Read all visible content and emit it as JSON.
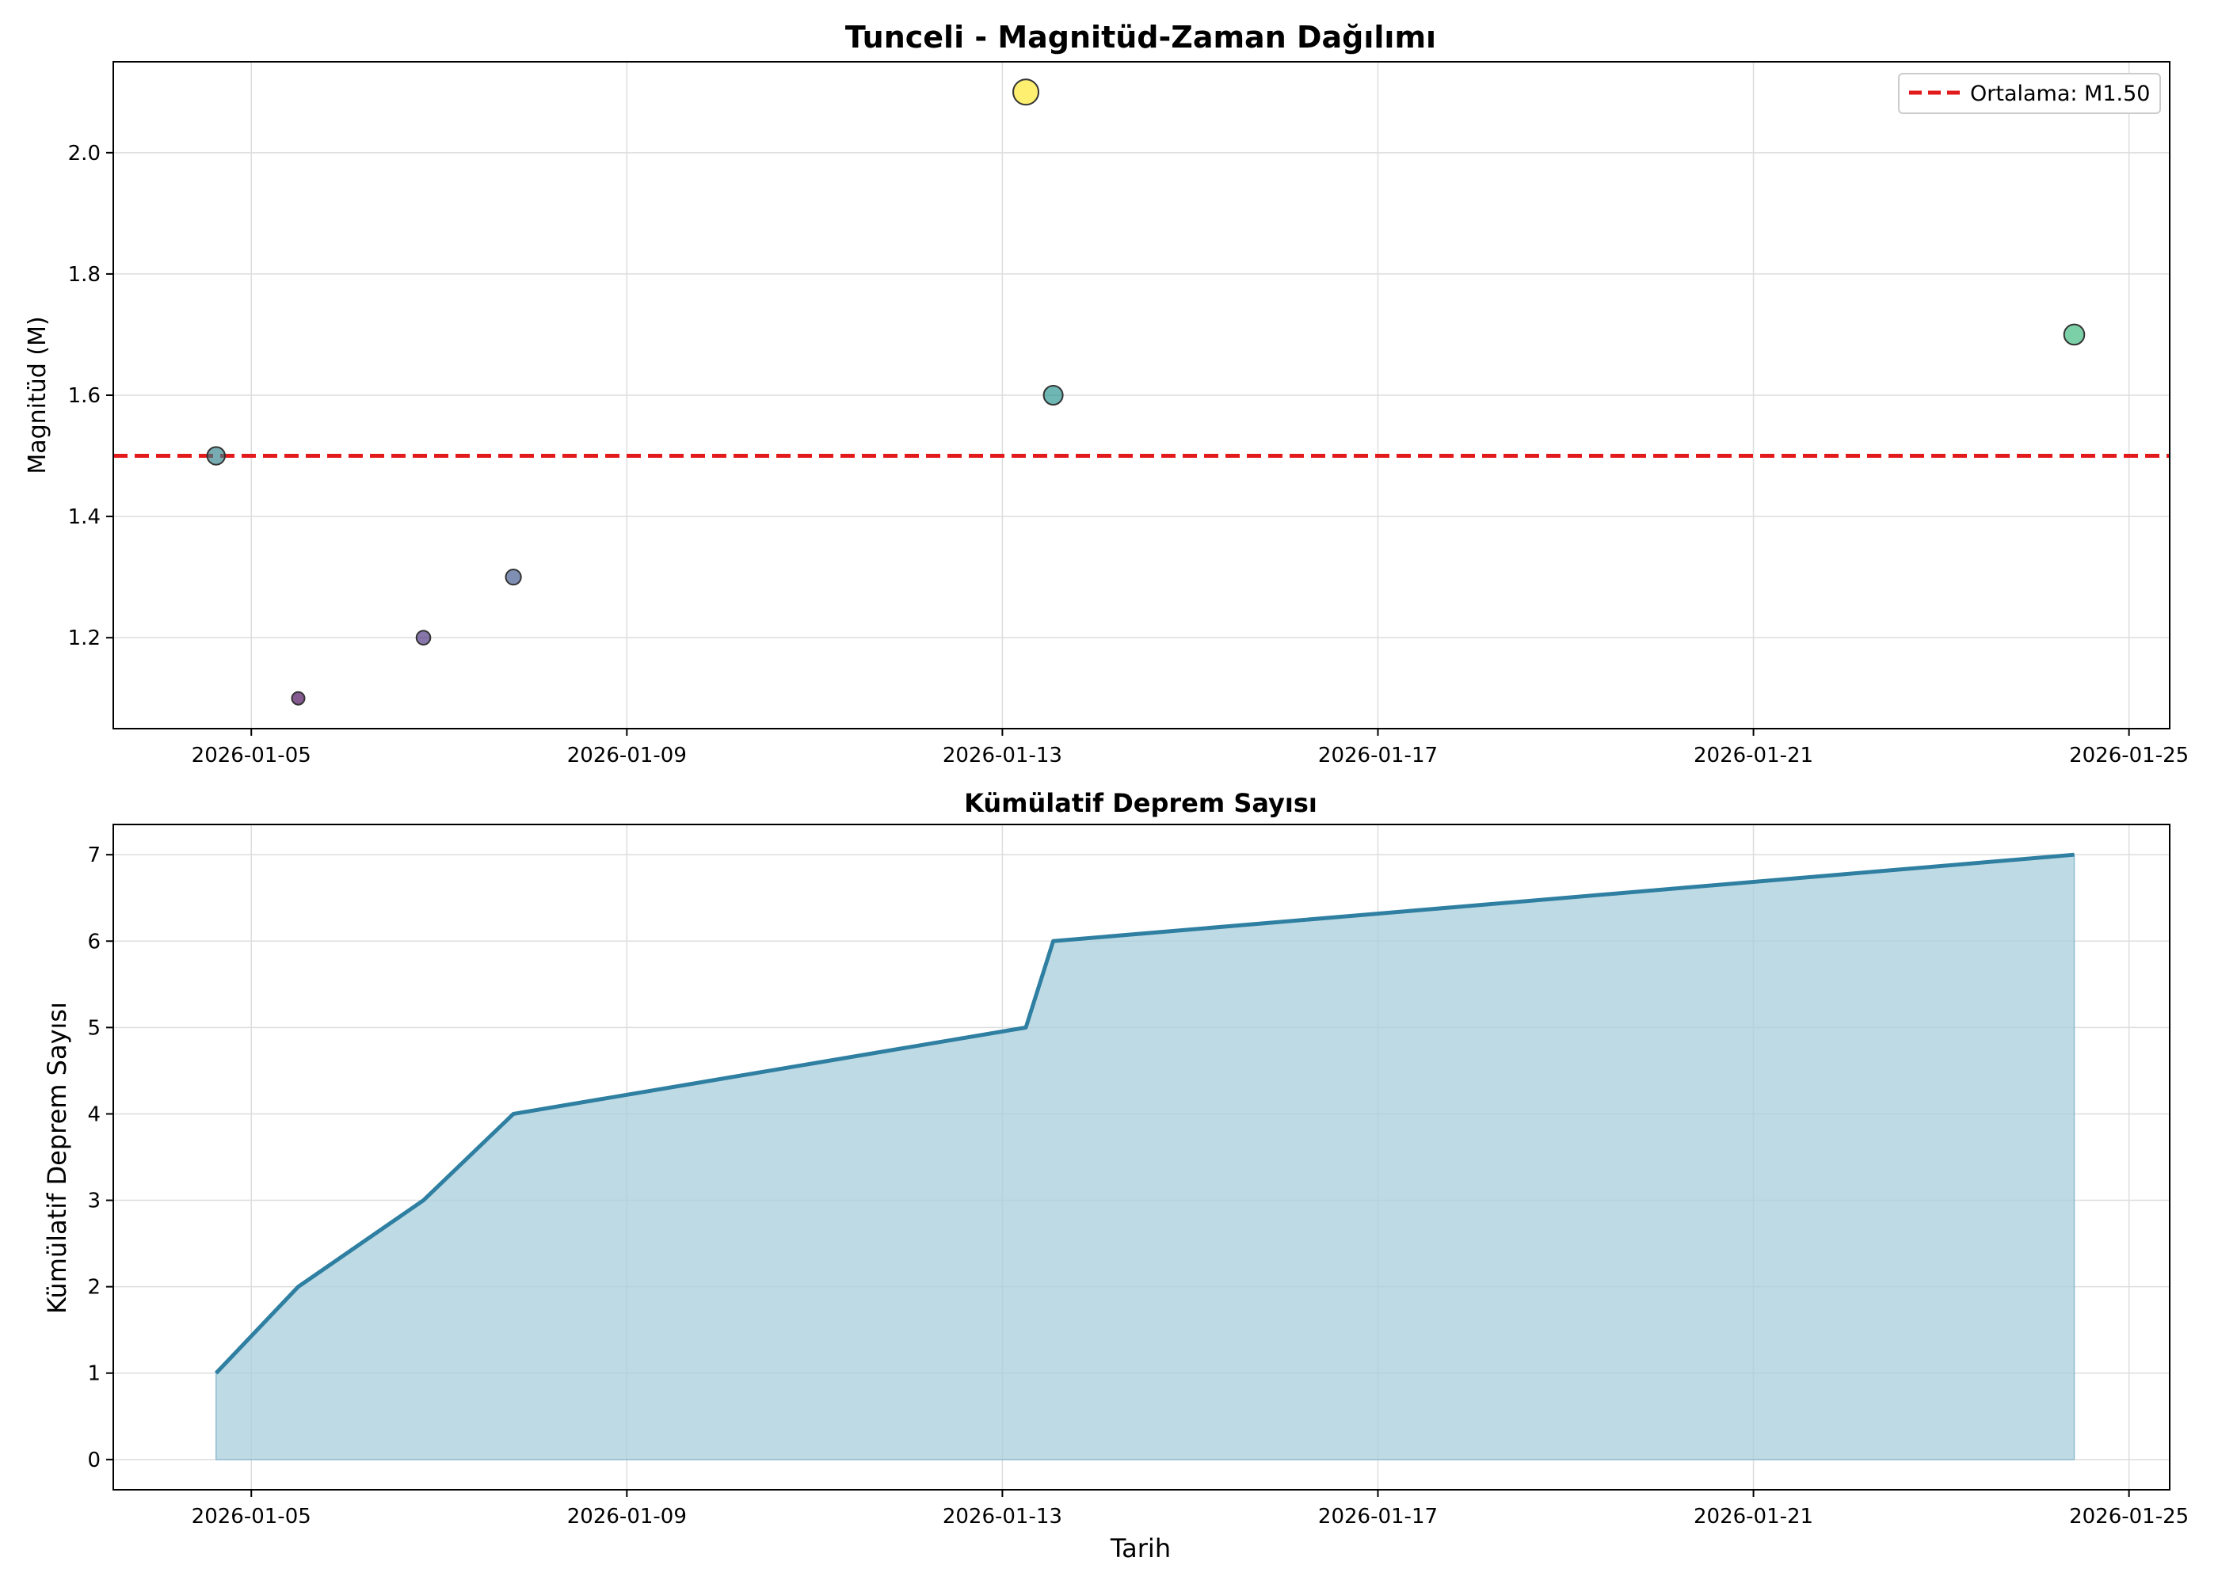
{
  "chart_data": [
    {
      "type": "scatter",
      "title": "Tunceli - Magnitüd-Zaman Dağılımı",
      "xlabel": "",
      "ylabel": "Magnitüd (M)",
      "xlim": [
        "2026-01-03T12:43",
        "2026-01-25T10:24"
      ],
      "ylim": [
        1.05,
        2.15
      ],
      "xticks": [
        "2026-01-05",
        "2026-01-09",
        "2026-01-13",
        "2026-01-17",
        "2026-01-21",
        "2026-01-25"
      ],
      "yticks": [
        "1.2",
        "1.4",
        "1.6",
        "1.8",
        "2.0"
      ],
      "grid": true,
      "legend": {
        "placement": "upper-right",
        "entries": [
          "Ortalama: M1.50"
        ]
      },
      "mean_line": {
        "value": 1.5,
        "label": "Ortalama: M1.50",
        "color": "#e31a1c",
        "style": "dashed"
      },
      "colormap": "viridis",
      "points": [
        {
          "x": "2026-01-04T15:00",
          "y": 1.5,
          "color": "#2e7f8a"
        },
        {
          "x": "2026-01-05T12:00",
          "y": 1.1,
          "color": "#440154"
        },
        {
          "x": "2026-01-06T20:00",
          "y": 1.2,
          "color": "#472d7b"
        },
        {
          "x": "2026-01-07T19:00",
          "y": 1.3,
          "color": "#3b528b"
        },
        {
          "x": "2026-01-13T06:00",
          "y": 2.1,
          "color": "#fde725"
        },
        {
          "x": "2026-01-13T13:00",
          "y": 1.6,
          "color": "#21918c"
        },
        {
          "x": "2026-01-24T10:00",
          "y": 1.7,
          "color": "#35b779"
        }
      ]
    },
    {
      "type": "area",
      "title": "Kümülatif Deprem Sayısı",
      "xlabel": "Tarih",
      "ylabel": "Kümülatif Deprem Sayısı",
      "xlim": [
        "2026-01-03T12:43",
        "2026-01-25T10:24"
      ],
      "ylim": [
        -0.35,
        7.35
      ],
      "xticks": [
        "2026-01-05",
        "2026-01-09",
        "2026-01-13",
        "2026-01-17",
        "2026-01-21",
        "2026-01-25"
      ],
      "yticks": [
        "0",
        "1",
        "2",
        "3",
        "4",
        "5",
        "6",
        "7"
      ],
      "grid": true,
      "line_color": "#2e7fa1",
      "fill_color": "#a8cddb",
      "x": [
        "2026-01-04T15:00",
        "2026-01-05T12:00",
        "2026-01-06T20:00",
        "2026-01-07T19:00",
        "2026-01-13T06:00",
        "2026-01-13T13:00",
        "2026-01-24T10:00"
      ],
      "values": [
        1,
        2,
        3,
        4,
        5,
        6,
        7
      ]
    }
  ]
}
